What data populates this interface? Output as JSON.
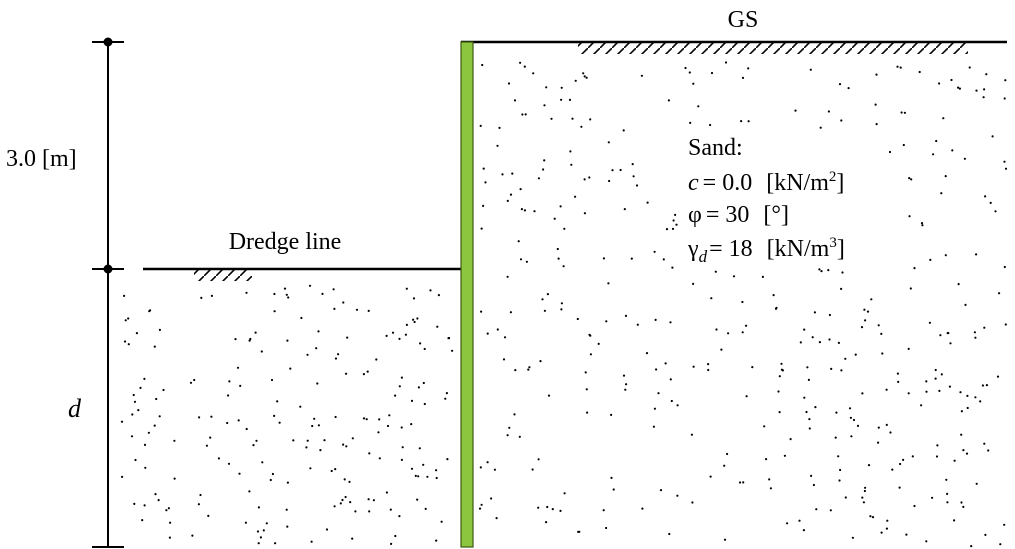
{
  "labels": {
    "ground_surface": "GS",
    "dredge_line": "Dredge line",
    "upper_dimension": "3.0 [m]",
    "embedment_depth": "d"
  },
  "soil": {
    "name": "Sand:",
    "cohesion": {
      "symbol": "c",
      "equals": "= 0.0",
      "unit": "[kN/m",
      "sup": "2",
      "close": "]"
    },
    "friction_angle": {
      "symbol": "φ",
      "equals": "= 30",
      "unit": "[°]"
    },
    "dry_unit_weight": {
      "symbol": "γ",
      "sub": "d",
      "equals": "= 18",
      "unit": "[kN/m",
      "sup": "3",
      "close": "]"
    }
  },
  "colors": {
    "sheet_pile": "#8cc63f",
    "sheet_pile_outline": "#3a5a10",
    "lines": "#000000"
  }
}
